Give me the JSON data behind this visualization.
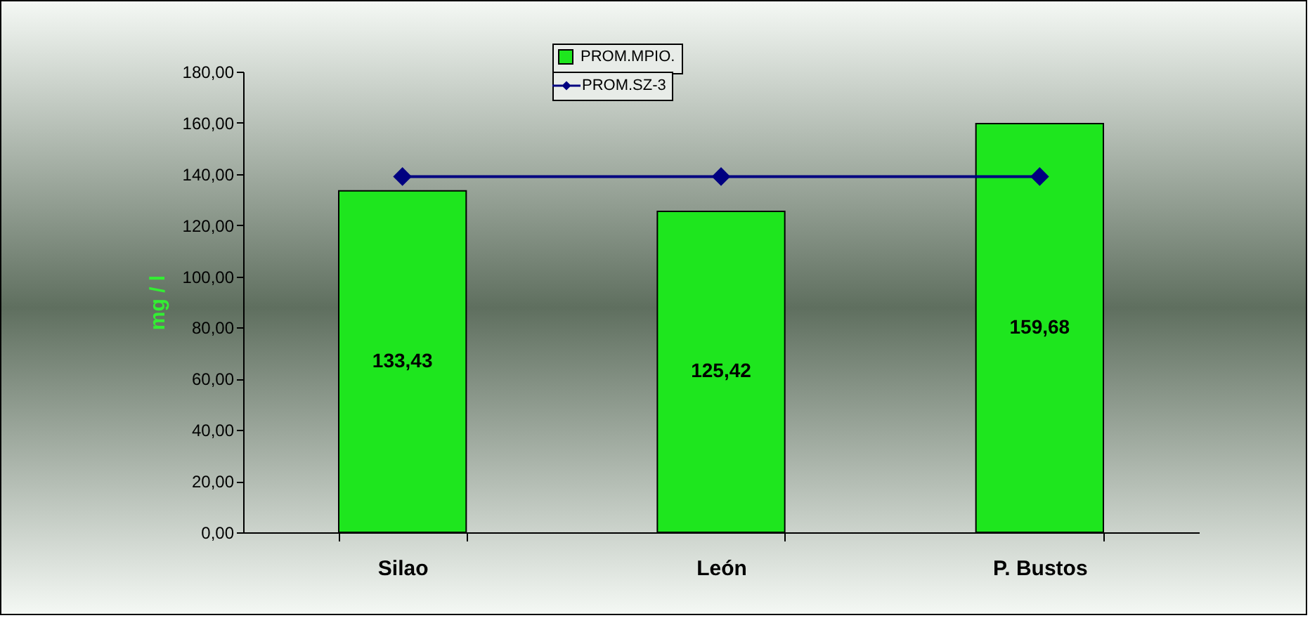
{
  "chart_data": {
    "type": "bar",
    "ylabel": "mg / l",
    "categories": [
      "Silao",
      "León",
      "P. Bustos"
    ],
    "series": [
      {
        "name": "PROM.MPIO.",
        "color": "#1ee61e",
        "values": [
          133.43,
          125.42,
          159.68
        ],
        "value_labels": [
          "133,43",
          "125,42",
          "159,68"
        ]
      },
      {
        "name": "PROM.SZ-3",
        "type": "line",
        "color": "#000080",
        "values": [
          139,
          139,
          139
        ]
      }
    ],
    "ylim": [
      0,
      180
    ],
    "yticks": [
      {
        "value": 0,
        "label": "0,00"
      },
      {
        "value": 20,
        "label": "20,00"
      },
      {
        "value": 40,
        "label": "40,00"
      },
      {
        "value": 60,
        "label": "60,00"
      },
      {
        "value": 80,
        "label": "80,00"
      },
      {
        "value": 100,
        "label": "100,00"
      },
      {
        "value": 120,
        "label": "120,00"
      },
      {
        "value": 140,
        "label": "140,00"
      },
      {
        "value": 160,
        "label": "160,00"
      },
      {
        "value": 180,
        "label": "180,00"
      }
    ],
    "grid": false,
    "legend": "top",
    "marker": "diamond",
    "line_style": "solid"
  }
}
